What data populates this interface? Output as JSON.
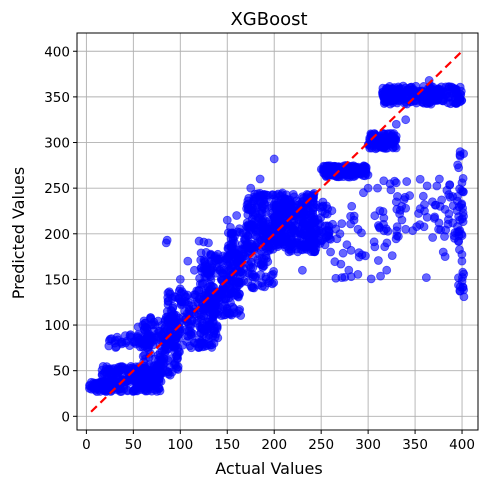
{
  "chart_data": {
    "type": "scatter",
    "title": "XGBoost",
    "xlabel": "Actual Values",
    "ylabel": "Predicted Values",
    "xlim": [
      -10,
      417
    ],
    "ylim": [
      -15,
      420
    ],
    "x_ticks": [
      0,
      50,
      100,
      150,
      200,
      250,
      300,
      350,
      400
    ],
    "y_ticks": [
      0,
      50,
      100,
      150,
      200,
      250,
      300,
      350,
      400
    ],
    "grid": true,
    "marker_color": "#0000ff",
    "reference_line": {
      "style": "dashed",
      "color": "#ff0000",
      "from": [
        5,
        5
      ],
      "to": [
        400,
        400
      ]
    },
    "clusters": [
      {
        "x_range": [
          3,
          30
        ],
        "y_range": [
          27,
          38
        ],
        "count": 70
      },
      {
        "x_range": [
          15,
          80
        ],
        "y_range": [
          27,
          55
        ],
        "count": 230
      },
      {
        "x_range": [
          20,
          70
        ],
        "y_range": [
          75,
          90
        ],
        "count": 50
      },
      {
        "x_range": [
          60,
          100
        ],
        "y_range": [
          45,
          110
        ],
        "count": 150
      },
      {
        "x_range": [
          85,
          140
        ],
        "y_range": [
          75,
          140
        ],
        "count": 220
      },
      {
        "x_range": [
          120,
          165
        ],
        "y_range": [
          110,
          180
        ],
        "count": 200
      },
      {
        "x_range": [
          150,
          200
        ],
        "y_range": [
          140,
          210
        ],
        "count": 180
      },
      {
        "x_range": [
          170,
          245
        ],
        "y_range": [
          180,
          245
        ],
        "count": 330
      },
      {
        "x_range": [
          200,
          260
        ],
        "y_range": [
          185,
          235
        ],
        "count": 140
      },
      {
        "x_range": [
          250,
          300
        ],
        "y_range": [
          262,
          275
        ],
        "count": 130
      },
      {
        "x_range": [
          300,
          330
        ],
        "y_range": [
          293,
          310
        ],
        "count": 90
      },
      {
        "x_range": [
          315,
          400
        ],
        "y_range": [
          342,
          362
        ],
        "count": 230
      },
      {
        "x_range": [
          310,
          400
        ],
        "y_range": [
          195,
          260
        ],
        "count": 70
      },
      {
        "x_range": [
          395,
          402
        ],
        "y_range": [
          130,
          290
        ],
        "count": 40
      },
      {
        "x_range": [
          250,
          330
        ],
        "y_range": [
          150,
          235
        ],
        "count": 40
      }
    ],
    "points": [
      [
        85,
        190
      ],
      [
        86,
        193
      ],
      [
        120,
        192
      ],
      [
        125,
        191
      ],
      [
        130,
        190
      ],
      [
        200,
        282
      ],
      [
        272,
        152
      ],
      [
        282,
        153
      ],
      [
        362,
        152
      ],
      [
        400,
        148
      ],
      [
        402,
        131
      ],
      [
        382,
        175
      ],
      [
        360,
        225
      ],
      [
        375,
        205
      ],
      [
        392,
        195
      ],
      [
        400,
        198
      ],
      [
        330,
        320
      ],
      [
        340,
        325
      ],
      [
        365,
        368
      ],
      [
        345,
        360
      ],
      [
        360,
        232
      ],
      [
        330,
        235
      ],
      [
        340,
        228
      ],
      [
        310,
        250
      ],
      [
        295,
        245
      ],
      [
        285,
        215
      ],
      [
        230,
        160
      ],
      [
        245,
        200
      ],
      [
        260,
        180
      ],
      [
        320,
        190
      ],
      [
        340,
        205
      ],
      [
        355,
        210
      ],
      [
        270,
        200
      ],
      [
        380,
        180
      ],
      [
        398,
        290
      ],
      [
        398,
        285
      ],
      [
        275,
        265
      ],
      [
        300,
        250
      ],
      [
        60,
        100
      ],
      [
        55,
        98
      ],
      [
        100,
        150
      ],
      [
        115,
        160
      ],
      [
        108,
        170
      ],
      [
        150,
        215
      ],
      [
        160,
        220
      ],
      [
        175,
        250
      ],
      [
        185,
        260
      ]
    ]
  }
}
